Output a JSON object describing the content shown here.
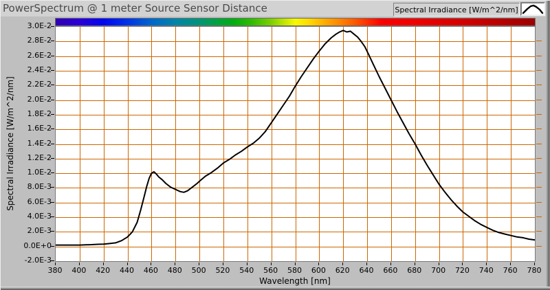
{
  "window": {
    "title": "PowerSpectrum @ 1 meter Source Sensor Distance"
  },
  "legend": {
    "label": "Spectral Irradiance [W/m^2/nm]",
    "icon": "waveform-peak-icon"
  },
  "axes": {
    "x": {
      "title": "Wavelength [nm]",
      "min": 380,
      "max": 780,
      "ticks": [
        380,
        400,
        420,
        440,
        460,
        480,
        500,
        520,
        540,
        560,
        580,
        600,
        620,
        640,
        660,
        680,
        700,
        720,
        740,
        760,
        780
      ]
    },
    "y": {
      "title": "Spectral Irradiance [W/m^2/nm]",
      "min": -0.002,
      "max": 0.03,
      "tick_values": [
        0.03,
        0.028,
        0.026,
        0.024,
        0.022,
        0.02,
        0.018,
        0.016,
        0.014,
        0.012,
        0.01,
        0.008,
        0.006,
        0.004,
        0.002,
        0.0,
        -0.002
      ],
      "tick_labels": [
        "3.0E-2",
        "2.8E-2",
        "2.6E-2",
        "2.4E-2",
        "2.2E-2",
        "2.0E-2",
        "1.8E-2",
        "1.6E-2",
        "1.4E-2",
        "1.2E-2",
        "1.0E-2",
        "8.0E-3",
        "6.0E-3",
        "4.0E-3",
        "2.0E-3",
        "0.0E+0",
        "-2.0E-3"
      ]
    }
  },
  "colors": {
    "panel_bg": "#bfbfbf",
    "header_bg": "#d2d2d2",
    "title_text": "#4a4a4a",
    "plot_bg": "#ffffff",
    "grid": "#cc6600",
    "curve": "#000000"
  },
  "spectrum_bar": {
    "stops": [
      [
        0,
        "#2f00b3"
      ],
      [
        5,
        "#2a00d8"
      ],
      [
        10,
        "#0008f0"
      ],
      [
        15,
        "#0033e8"
      ],
      [
        20,
        "#0066cc"
      ],
      [
        25,
        "#0085a8"
      ],
      [
        30,
        "#009478"
      ],
      [
        33,
        "#00a04a"
      ],
      [
        37,
        "#00ad10"
      ],
      [
        41,
        "#30bc00"
      ],
      [
        45,
        "#7ed000"
      ],
      [
        48,
        "#c8e800"
      ],
      [
        50,
        "#f8f800"
      ],
      [
        53,
        "#ffd800"
      ],
      [
        56,
        "#ffae00"
      ],
      [
        59,
        "#ff8800"
      ],
      [
        62,
        "#ff5f00"
      ],
      [
        65,
        "#ff2e00"
      ],
      [
        68,
        "#fa0000"
      ],
      [
        75,
        "#f00000"
      ],
      [
        85,
        "#d40000"
      ],
      [
        100,
        "#9d0000"
      ]
    ]
  },
  "chart_data": {
    "type": "line",
    "title": "PowerSpectrum @ 1 meter Source Sensor Distance",
    "xlabel": "Wavelength [nm]",
    "ylabel": "Spectral Irradiance [W/m^2/nm]",
    "xlim": [
      380,
      780
    ],
    "ylim": [
      -0.002,
      0.03
    ],
    "grid": true,
    "legend_position": "top-right",
    "x": [
      380,
      385,
      390,
      395,
      400,
      405,
      410,
      415,
      420,
      425,
      430,
      435,
      440,
      444,
      448,
      451,
      454,
      456,
      458,
      460,
      462,
      464,
      466,
      469,
      472,
      476,
      480,
      484,
      487,
      490,
      494,
      498,
      500,
      505,
      510,
      515,
      520,
      525,
      530,
      535,
      540,
      545,
      550,
      555,
      560,
      565,
      570,
      575,
      580,
      585,
      590,
      595,
      600,
      605,
      610,
      614,
      617,
      620,
      623,
      626,
      629,
      632,
      635,
      638,
      641,
      645,
      650,
      655,
      660,
      665,
      670,
      675,
      680,
      685,
      690,
      695,
      700,
      705,
      710,
      715,
      720,
      725,
      730,
      735,
      740,
      745,
      750,
      755,
      760,
      765,
      770,
      775,
      780
    ],
    "values": [
      0.0002,
      0.0002,
      0.0002,
      0.0002,
      0.0002,
      0.00022,
      0.00025,
      0.0003,
      0.00032,
      0.0004,
      0.0005,
      0.0008,
      0.0013,
      0.002,
      0.0033,
      0.005,
      0.0069,
      0.0082,
      0.0093,
      0.01,
      0.0102,
      0.0099,
      0.0095,
      0.0091,
      0.0086,
      0.0081,
      0.0078,
      0.0075,
      0.0074,
      0.0076,
      0.0081,
      0.0086,
      0.0089,
      0.0096,
      0.0101,
      0.0107,
      0.0114,
      0.0119,
      0.0125,
      0.013,
      0.0136,
      0.0141,
      0.0148,
      0.0157,
      0.0169,
      0.0181,
      0.0193,
      0.0205,
      0.0219,
      0.0232,
      0.0244,
      0.0256,
      0.0267,
      0.0277,
      0.0285,
      0.029,
      0.0293,
      0.0295,
      0.0293,
      0.0294,
      0.029,
      0.0286,
      0.028,
      0.0273,
      0.0263,
      0.0249,
      0.0232,
      0.0216,
      0.02,
      0.0184,
      0.0169,
      0.0154,
      0.014,
      0.0125,
      0.0111,
      0.0098,
      0.0085,
      0.0074,
      0.0064,
      0.0055,
      0.0047,
      0.0041,
      0.0035,
      0.003,
      0.0026,
      0.0022,
      0.0019,
      0.0017,
      0.0015,
      0.0013,
      0.0012,
      0.001,
      0.0009
    ]
  }
}
